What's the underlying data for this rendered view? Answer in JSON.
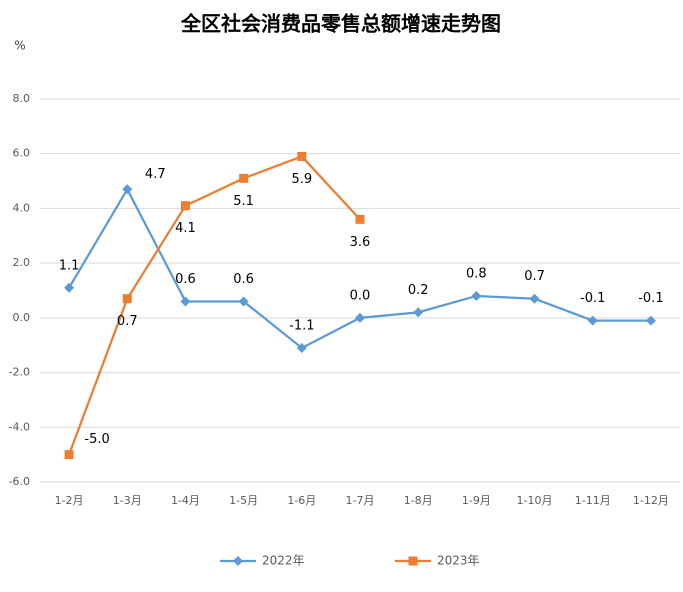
{
  "chart_data": {
    "type": "line",
    "title": "全区社会消费品零售总额增速走势图",
    "y_unit": "%",
    "categories": [
      "1-2月",
      "1-3月",
      "1-4月",
      "1-5月",
      "1-6月",
      "1-7月",
      "1-8月",
      "1-9月",
      "1-10月",
      "1-11月",
      "1-12月"
    ],
    "series": [
      {
        "name": "2022年",
        "color": "#5b9bd5",
        "marker": "diamond",
        "values": [
          1.1,
          4.7,
          0.6,
          0.6,
          -1.1,
          0,
          0.2,
          0.8,
          0.7,
          -0.1,
          -0.1
        ],
        "value_labels": [
          "1.1",
          "4.7",
          "0.6",
          "0.6",
          "-1.1",
          "0.0",
          "0.2",
          "0.8",
          "0.7",
          "-0.1",
          "-0.1"
        ]
      },
      {
        "name": "2023年",
        "color": "#ed7d31",
        "marker": "square",
        "values": [
          -5,
          0.7,
          4.1,
          5.1,
          5.9,
          3.6,
          null,
          null,
          null,
          null,
          null
        ],
        "value_labels": [
          "-5.0",
          "0.7",
          "4.1",
          "5.1",
          "5.9",
          "3.6",
          null,
          null,
          null,
          null,
          null
        ]
      }
    ],
    "ylim": [
      -6,
      8
    ],
    "yticks": [
      {
        "value": -6,
        "label": "-6.0"
      },
      {
        "value": -4,
        "label": "-4.0"
      },
      {
        "value": -2,
        "label": "-2.0"
      },
      {
        "value": 0,
        "label": "0.0"
      },
      {
        "value": 2,
        "label": "2.0"
      },
      {
        "value": 4,
        "label": "4.0"
      },
      {
        "value": 6,
        "label": "6.0"
      },
      {
        "value": 8,
        "label": "8.0"
      }
    ],
    "grid": true,
    "legend": "bottom"
  }
}
